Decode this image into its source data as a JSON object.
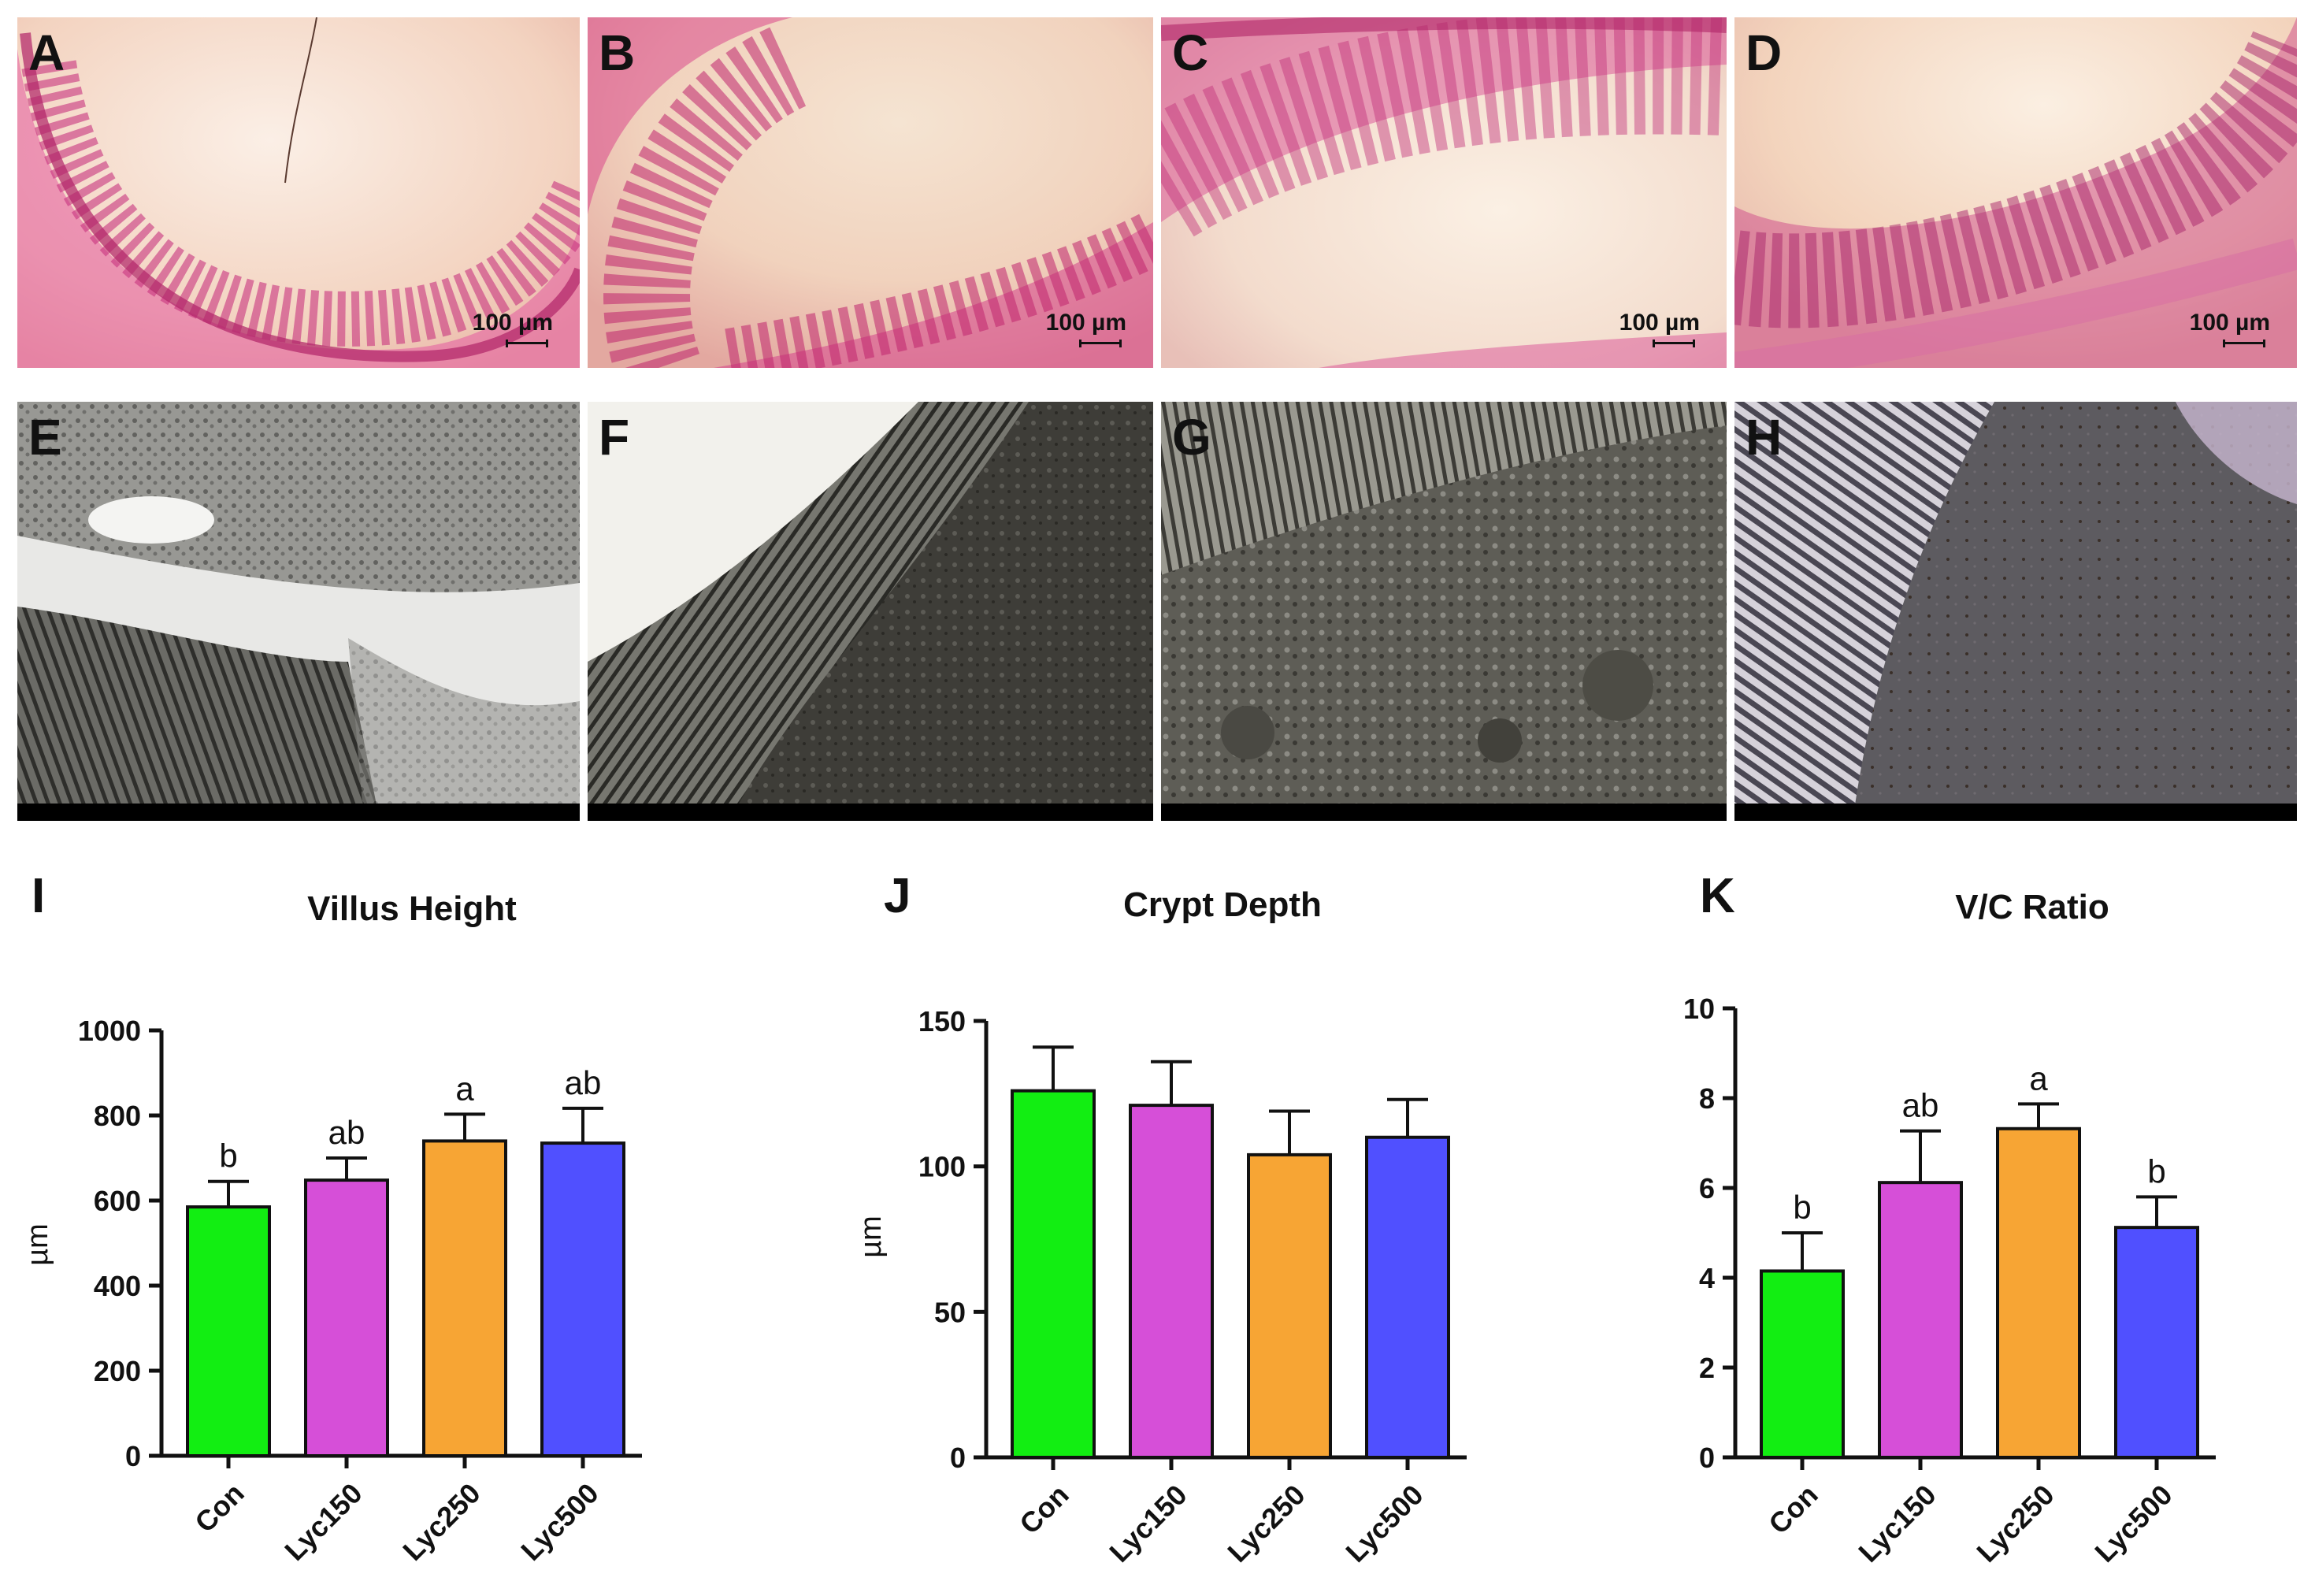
{
  "he_panels": [
    {
      "letter": "A",
      "scale": "100 µm"
    },
    {
      "letter": "B",
      "scale": "100 µm"
    },
    {
      "letter": "C",
      "scale": "100 µm"
    },
    {
      "letter": "D",
      "scale": "100 µm"
    }
  ],
  "tem_panels": [
    {
      "letter": "E"
    },
    {
      "letter": "F"
    },
    {
      "letter": "G"
    },
    {
      "letter": "H"
    }
  ],
  "colors": {
    "Con": "#12ee12",
    "Lyc150": "#d64fd8",
    "Lyc250": "#f7a534",
    "Lyc500": "#5050ff"
  },
  "chart_data": [
    {
      "type": "bar",
      "panel_letter": "I",
      "title": "Villus Height",
      "xlabel": "",
      "ylabel": "µm",
      "categories": [
        "Con",
        "Lyc150",
        "Lyc250",
        "Lyc500"
      ],
      "values": [
        585,
        648,
        740,
        735
      ],
      "errors": [
        60,
        52,
        63,
        82
      ],
      "sig_letters": [
        "b",
        "ab",
        "a",
        "ab"
      ],
      "ylim": [
        0,
        1000
      ],
      "yticks": [
        0,
        200,
        400,
        600,
        800,
        1000
      ],
      "grid": false
    },
    {
      "type": "bar",
      "panel_letter": "J",
      "title": "Crypt Depth",
      "xlabel": "",
      "ylabel": "µm",
      "categories": [
        "Con",
        "Lyc150",
        "Lyc250",
        "Lyc500"
      ],
      "values": [
        126,
        121,
        104,
        110
      ],
      "errors": [
        15,
        15,
        15,
        13
      ],
      "sig_letters": [
        "",
        "",
        "",
        ""
      ],
      "ylim": [
        0,
        150
      ],
      "yticks": [
        0,
        50,
        100,
        150
      ],
      "grid": false
    },
    {
      "type": "bar",
      "panel_letter": "K",
      "title": "V/C Ratio",
      "xlabel": "",
      "ylabel": "",
      "categories": [
        "Con",
        "Lyc150",
        "Lyc250",
        "Lyc500"
      ],
      "values": [
        4.15,
        6.12,
        7.32,
        5.12
      ],
      "errors": [
        0.85,
        1.15,
        0.55,
        0.68
      ],
      "sig_letters": [
        "b",
        "ab",
        "a",
        "b"
      ],
      "ylim": [
        0,
        10
      ],
      "yticks": [
        0,
        2,
        4,
        6,
        8,
        10
      ],
      "grid": false
    }
  ]
}
